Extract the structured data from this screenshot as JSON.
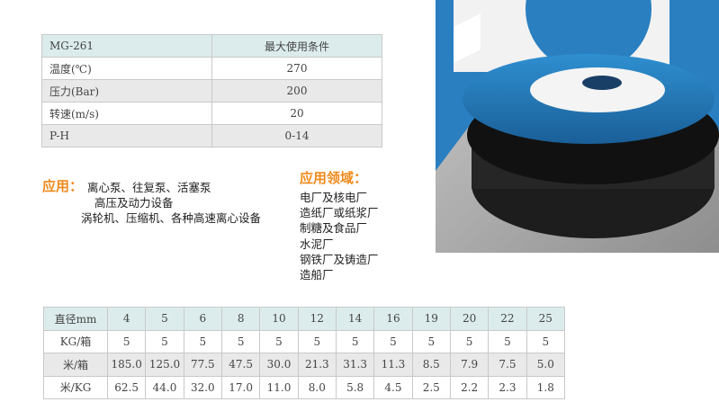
{
  "spec_table": {
    "header": [
      "MG-261",
      "最大使用条件"
    ],
    "rows": [
      [
        "温度(℃)",
        "270"
      ],
      [
        "压力(Bar)",
        "200"
      ],
      [
        "转速(m/s)",
        "20"
      ],
      [
        "P-H",
        "0-14"
      ]
    ]
  },
  "applications": {
    "label": "应用：",
    "lines": [
      "离心泵、往复泵、活塞泵",
      "高压及动力设备",
      "涡轮机、压缩机、各种高速离心设备"
    ]
  },
  "fields": {
    "title": "应用领域：",
    "items": [
      "电厂及核电厂",
      "造纸厂或纸浆厂",
      "制糖及食品厂",
      "水泥厂",
      "钢铁厂及铸造厂",
      "造船厂"
    ]
  },
  "size_table": {
    "header": [
      "直径mm",
      "4",
      "5",
      "6",
      "8",
      "10",
      "12",
      "14",
      "16",
      "19",
      "20",
      "22",
      "25"
    ],
    "rows": [
      [
        "KG/箱",
        "5",
        "5",
        "5",
        "5",
        "5",
        "5",
        "5",
        "5",
        "5",
        "5",
        "5",
        "5"
      ],
      [
        "米/箱",
        "185.0",
        "125.0",
        "77.5",
        "47.5",
        "30.0",
        "21.3",
        "31.3",
        "11.3",
        "8.5",
        "7.9",
        "7.5",
        "5.0"
      ],
      [
        "米/KG",
        "62.5",
        "44.0",
        "32.0",
        "17.0",
        "11.0",
        "8.0",
        "5.8",
        "4.5",
        "2.5",
        "2.2",
        "2.3",
        "1.8"
      ]
    ]
  }
}
